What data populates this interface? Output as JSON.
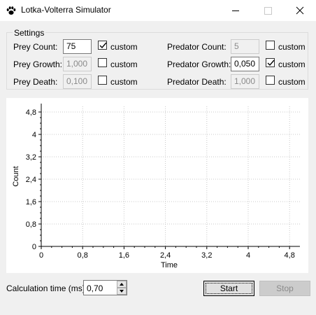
{
  "window": {
    "title": "Lotka-Volterra Simulator",
    "icon": "paw-icon",
    "controls": [
      "minimize-icon",
      "maximize-icon",
      "close-icon"
    ]
  },
  "settings": {
    "legend": "Settings",
    "prey_count": {
      "label": "Prey Count:",
      "value": "75",
      "enabled": true,
      "custom_label": "custom",
      "custom_checked": true
    },
    "prey_growth": {
      "label": "Prey Growth:",
      "value": "1,000",
      "enabled": false,
      "custom_label": "custom",
      "custom_checked": false
    },
    "prey_death": {
      "label": "Prey Death:",
      "value": "0,100",
      "enabled": false,
      "custom_label": "custom",
      "custom_checked": false
    },
    "predator_count": {
      "label": "Predator Count:",
      "value": "5",
      "enabled": false,
      "custom_label": "custom",
      "custom_checked": false
    },
    "predator_growth": {
      "label": "Predator Growth:",
      "value": "0,050",
      "enabled": true,
      "custom_label": "custom",
      "custom_checked": true
    },
    "predator_death": {
      "label": "Predator Death:",
      "value": "1,000",
      "enabled": false,
      "custom_label": "custom",
      "custom_checked": false
    }
  },
  "chart_data": {
    "type": "line",
    "title": "",
    "xlabel": "Time",
    "ylabel": "Count",
    "xlim": [
      0,
      5
    ],
    "ylim": [
      0,
      5
    ],
    "xticks": [
      0,
      0.8,
      1.6,
      2.4,
      3.2,
      4,
      4.8
    ],
    "yticks": [
      0,
      0.8,
      1.6,
      2.4,
      3.2,
      4,
      4.8
    ],
    "xtick_labels": [
      "0",
      "0,8",
      "1,6",
      "2,4",
      "3,2",
      "4",
      "4,8"
    ],
    "ytick_labels": [
      "0",
      "0,8",
      "1,6",
      "2,4",
      "3,2",
      "4",
      "4,8"
    ],
    "grid": true,
    "series": []
  },
  "bottom": {
    "calc_time_label": "Calculation time (ms):",
    "calc_time_value": "0,70",
    "start_label": "Start",
    "stop_label": "Stop"
  },
  "colors": {
    "grid": "#c8c8c8",
    "axis": "#000000",
    "panel": "#ffffff",
    "background": "#f0f0f0"
  }
}
